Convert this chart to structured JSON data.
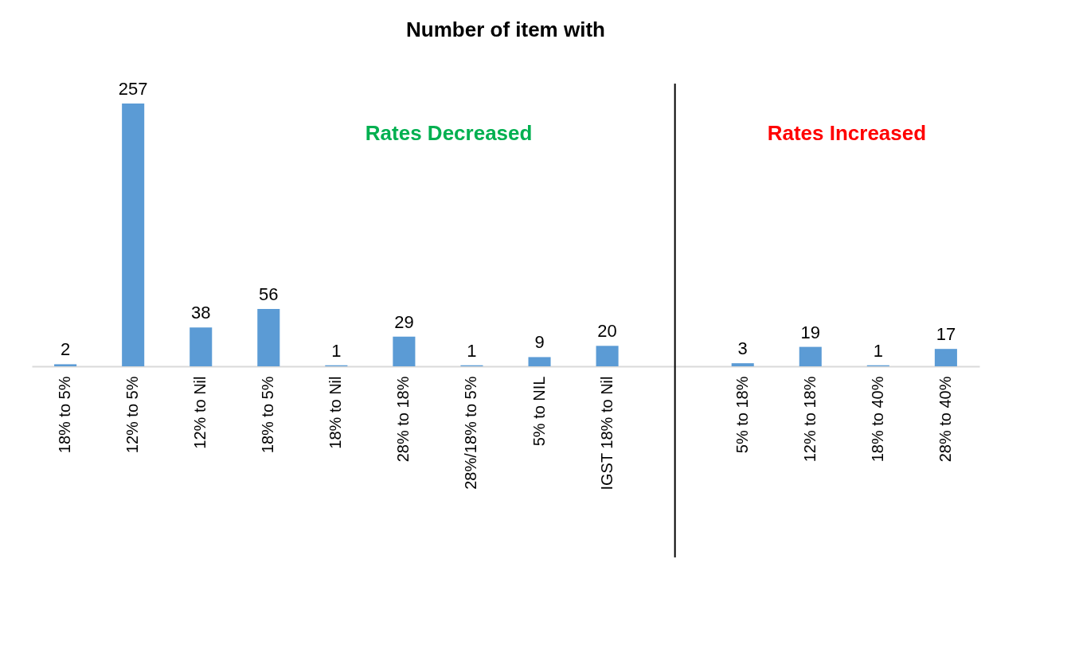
{
  "chart_data": {
    "type": "bar",
    "title": "Number of item with",
    "categories": [
      "18% to 5%",
      "12% to 5%",
      "12% to Nil",
      "18% to 5%",
      "18% to Nil",
      "28% to 18%",
      "28%/18% to 5%",
      "5% to NIL",
      "IGST 18% to Nil",
      null,
      "5% to 18%",
      "12% to 18%",
      "18% to 40%",
      "28% to 40%"
    ],
    "values": [
      2,
      257,
      38,
      56,
      1,
      29,
      1,
      9,
      20,
      null,
      3,
      19,
      1,
      17
    ],
    "color": "#5b9bd5",
    "data_labels": true,
    "tick_labels": "x",
    "annotations": [
      "Rates Decreased",
      "Rates Increased"
    ],
    "ref_lines": [
      {
        "axis": "x",
        "value": null,
        "color": "#000000"
      }
    ]
  }
}
